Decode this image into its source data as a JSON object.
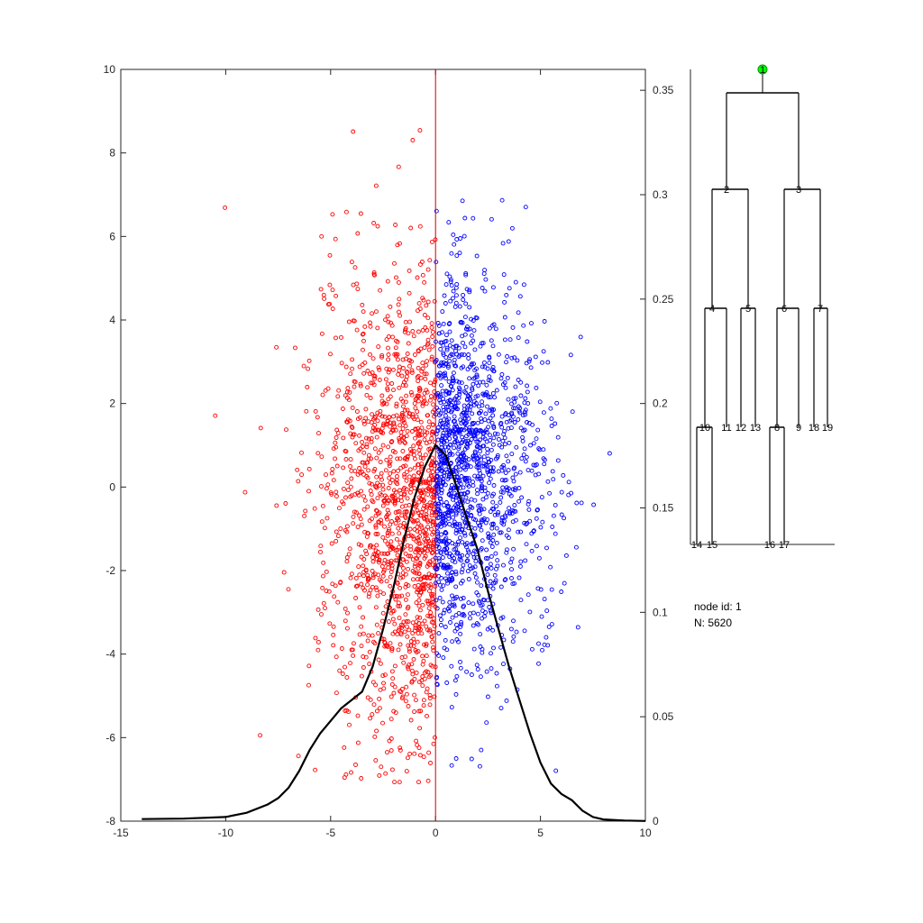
{
  "chart_data": [
    {
      "type": "scatter",
      "xlim": [
        -15,
        10
      ],
      "ylim_left": [
        -8,
        10
      ],
      "ylim_right": [
        0,
        0.36
      ],
      "x_ticks": [
        -15,
        -10,
        -5,
        0,
        5,
        10
      ],
      "y_ticks_left": [
        -8,
        -6,
        -4,
        -2,
        0,
        2,
        4,
        6,
        8,
        10
      ],
      "y_ticks_right": [
        0,
        0.05,
        0.1,
        0.15,
        0.2,
        0.25,
        0.3,
        0.35
      ],
      "split_x": 0,
      "colors": {
        "left_points": "#ff0000",
        "right_points": "#0000ff",
        "split_line": "#cc0000",
        "density": "#000000"
      },
      "series": [
        {
          "color": "#ff0000",
          "marker": "circle-open",
          "count_approx": 2800,
          "x_range": [
            -13.5,
            0
          ],
          "x_peak": -0.8,
          "y_center": -0.5,
          "y_range": [
            -7.2,
            10
          ]
        },
        {
          "color": "#0000ff",
          "marker": "circle-open",
          "count_approx": 2800,
          "x_range": [
            0,
            8.3
          ],
          "x_peak": 1.5,
          "y_center": 0.3,
          "y_range": [
            -7.5,
            6.9
          ]
        },
        {
          "type": "line",
          "axis": "right",
          "color": "#000000",
          "x": [
            -14,
            -12,
            -10,
            -9,
            -8,
            -7.5,
            -7,
            -6.5,
            -6,
            -5.5,
            -5,
            -4.5,
            -4,
            -3.5,
            -3,
            -2.5,
            -2,
            -1.5,
            -1,
            -0.5,
            0,
            0.5,
            1,
            1.5,
            2,
            2.5,
            3,
            3.5,
            4,
            4.5,
            5,
            5.5,
            6,
            6.5,
            7,
            7.5,
            8,
            9,
            10
          ],
          "y": [
            0.001,
            0.0012,
            0.002,
            0.004,
            0.008,
            0.011,
            0.016,
            0.024,
            0.034,
            0.042,
            0.048,
            0.054,
            0.058,
            0.062,
            0.074,
            0.092,
            0.112,
            0.135,
            0.155,
            0.17,
            0.18,
            0.175,
            0.16,
            0.145,
            0.13,
            0.11,
            0.092,
            0.074,
            0.058,
            0.042,
            0.028,
            0.018,
            0.013,
            0.01,
            0.005,
            0.002,
            0.0008,
            0.0003,
            0.0001
          ]
        }
      ]
    },
    {
      "type": "tree",
      "root_color": "#00ff00",
      "nodes": [
        {
          "id": "1",
          "parent": null
        },
        {
          "id": "2",
          "parent": "1"
        },
        {
          "id": "3",
          "parent": "1"
        },
        {
          "id": "4",
          "parent": "2"
        },
        {
          "id": "5",
          "parent": "2"
        },
        {
          "id": "6",
          "parent": "3"
        },
        {
          "id": "7",
          "parent": "3"
        },
        {
          "id": "10",
          "parent": "4"
        },
        {
          "id": "11",
          "parent": "4"
        },
        {
          "id": "12",
          "parent": "5"
        },
        {
          "id": "13",
          "parent": "5"
        },
        {
          "id": "8",
          "parent": "6"
        },
        {
          "id": "9",
          "parent": "6"
        },
        {
          "id": "18",
          "parent": "7"
        },
        {
          "id": "19",
          "parent": "7"
        },
        {
          "id": "14",
          "parent": "10"
        },
        {
          "id": "15",
          "parent": "10"
        },
        {
          "id": "16",
          "parent": "8"
        },
        {
          "id": "17",
          "parent": "8"
        }
      ]
    }
  ],
  "info": {
    "node_id_text": "node id: 1",
    "n_text": "N: 5620"
  }
}
